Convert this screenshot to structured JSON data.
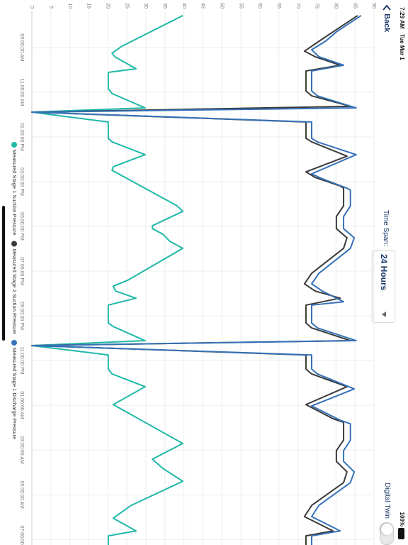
{
  "status_bar": {
    "time": "7:29 AM",
    "date": "Tue Mar 1",
    "battery": "100%"
  },
  "header": {
    "back": "Back",
    "time_span_label": "Time Span:",
    "time_span_value": "24 Hours",
    "digital_twin": "Digital Twin"
  },
  "chart_data": {
    "type": "line",
    "xlim": [
      7.35,
      31.25
    ],
    "xticks": [
      {
        "value": 9,
        "label": "09:00:00 AM"
      },
      {
        "value": 11,
        "label": "11:00:00 AM"
      },
      {
        "value": 13,
        "label": "01:00:00 PM"
      },
      {
        "value": 15,
        "label": "03:00:00 PM"
      },
      {
        "value": 17,
        "label": "05:00:00 PM"
      },
      {
        "value": 19,
        "label": "07:00:00 PM"
      },
      {
        "value": 21,
        "label": "09:00:00 PM"
      },
      {
        "value": 23,
        "label": "11:00:00 PM"
      },
      {
        "value": 25,
        "label": "01:00:00 AM"
      },
      {
        "value": 27,
        "label": "03:00:00 AM"
      },
      {
        "value": 29,
        "label": "05:00:00 AM"
      },
      {
        "value": 31,
        "label": "07:00:00 AM"
      }
    ],
    "ylim": [
      0,
      90
    ],
    "yticks": [
      0,
      5,
      10,
      15,
      20,
      25,
      30,
      35,
      40,
      45,
      50,
      55,
      60,
      65,
      70,
      75,
      80,
      85,
      90
    ],
    "grid": true,
    "series": [
      {
        "name": "Measured Stage 1 Suction Pressure",
        "color": "#1fb8a8",
        "x": [
          7.57,
          8.94,
          9.25,
          9.41,
          9.95,
          10.11,
          10.84,
          11.06,
          11.7,
          11.89,
          12.33,
          13.06,
          13.22,
          13.79,
          14.33,
          14.49,
          16.08,
          16.33,
          16.97,
          17.1,
          17.35,
          17.67,
          17.98,
          19.41,
          19.67,
          19.89,
          20.21,
          20.52,
          21.32,
          21.48,
          22.11,
          22.33,
          22.75,
          23.38,
          23.6,
          24.17,
          24.97,
          26.71,
          27.41,
          27.83,
          28.4,
          29.48,
          30.05,
          30.62,
          30.84,
          31.25
        ],
        "values": [
          39.7,
          23.7,
          21.1,
          21.8,
          27.4,
          20.1,
          20.1,
          21.1,
          29.8,
          0,
          20.1,
          20.1,
          21.1,
          29.8,
          21.4,
          21.1,
          38.2,
          39.7,
          31.7,
          31.7,
          34.5,
          36.3,
          39.7,
          25.2,
          21.4,
          22.0,
          27.4,
          20.1,
          20.1,
          21.4,
          29.8,
          0,
          20.1,
          20.1,
          21.1,
          29.8,
          21.4,
          39.7,
          31.7,
          34.5,
          39.7,
          26.1,
          21.4,
          27.4,
          20.1,
          20.1
        ]
      },
      {
        "name": "Measured Stage 2 Suction Pressure",
        "color": "#3a3a3a",
        "x": [
          7.57,
          8.3,
          8.62,
          9.16,
          9.41,
          9.79,
          10.05,
          10.94,
          11.16,
          11.63,
          11.89,
          12.33,
          13.06,
          13.22,
          13.86,
          14.56,
          14.81,
          15.19,
          15.29,
          16.08,
          16.56,
          17.1,
          17.51,
          17.98,
          19.1,
          19.57,
          19.89,
          20.21,
          20.52,
          21.32,
          21.54,
          22.11,
          22.33,
          22.75,
          23.38,
          23.6,
          24.17,
          24.97,
          25.6,
          25.76,
          26.56,
          27.03,
          27.51,
          27.98,
          28.46,
          29.48,
          29.98,
          30.62,
          30.84,
          31.25
        ],
        "values": [
          85.7,
          79.2,
          76.4,
          71.7,
          74.5,
          81.1,
          72.1,
          72.1,
          73.6,
          83.8,
          0,
          72.1,
          72.1,
          73.6,
          82.9,
          72.1,
          74.5,
          81.1,
          82.0,
          82.0,
          80.1,
          80.1,
          82.9,
          82.0,
          73.6,
          71.7,
          74.5,
          81.1,
          72.1,
          72.1,
          73.6,
          83.8,
          0,
          72.1,
          72.1,
          73.6,
          82.9,
          72.1,
          79.2,
          82.0,
          82.0,
          80.1,
          80.1,
          82.9,
          82.0,
          73.6,
          71.7,
          79.2,
          72.1,
          72.1
        ]
      },
      {
        "name": "Measured Stage 1 Discharge Pressure",
        "color": "#3572b8",
        "x": [
          7.57,
          8.3,
          8.71,
          9.1,
          9.41,
          9.79,
          10.05,
          10.94,
          11.16,
          11.7,
          11.89,
          12.33,
          13.06,
          13.22,
          13.79,
          14.65,
          14.87,
          15.29,
          15.38,
          16.08,
          16.56,
          17.1,
          17.51,
          17.98,
          19.1,
          19.57,
          19.89,
          20.37,
          20.52,
          21.32,
          21.54,
          22.11,
          22.33,
          22.75,
          23.38,
          23.6,
          24.27,
          25.03,
          25.67,
          25.83,
          26.56,
          27.03,
          27.51,
          27.98,
          28.46,
          29.48,
          29.98,
          30.62,
          30.84,
          31.25
        ],
        "values": [
          86.6,
          80.1,
          77.3,
          73.6,
          75.5,
          82.0,
          73.6,
          73.6,
          75.1,
          85.3,
          0,
          73.6,
          73.6,
          75.1,
          85.3,
          73.6,
          76.4,
          82.9,
          83.8,
          83.8,
          82.0,
          82.0,
          84.8,
          83.8,
          75.5,
          73.6,
          76.4,
          82.0,
          73.6,
          73.6,
          75.1,
          85.3,
          0,
          73.6,
          73.6,
          75.1,
          84.8,
          73.6,
          81.1,
          83.8,
          83.8,
          82.0,
          82.0,
          84.8,
          83.8,
          75.5,
          73.6,
          81.1,
          73.6,
          73.6
        ]
      }
    ]
  }
}
